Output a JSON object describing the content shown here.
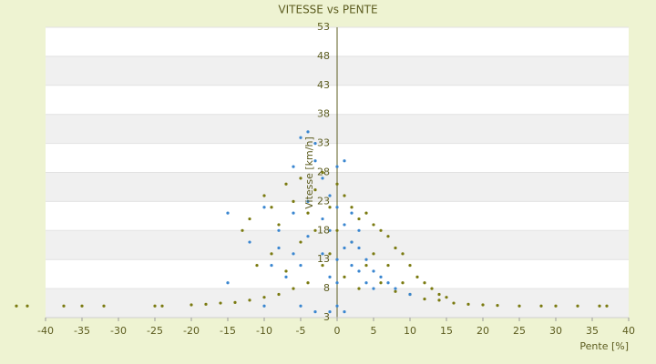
{
  "chart_data": {
    "type": "scatter",
    "title": "VITESSE vs PENTE",
    "x_label": "Pente [%]",
    "y_label": "Vitesse [km/h]",
    "xlim": [
      -40,
      40
    ],
    "xticks": [
      -40,
      -35,
      -30,
      -25,
      -20,
      -15,
      -10,
      -5,
      0,
      5,
      10,
      15,
      20,
      25,
      30,
      35,
      40
    ],
    "ylim": [
      3,
      53
    ],
    "yticks": [
      3,
      8,
      13,
      18,
      23,
      28,
      33,
      38,
      43,
      48,
      53
    ],
    "grid": true,
    "series": [
      {
        "color": "#7a7a10",
        "x": [
          -44,
          -42.5,
          -37.5,
          -35,
          -32,
          -25,
          -24,
          -20,
          -18,
          -16,
          -14,
          -12,
          -10,
          -8,
          -6,
          -4,
          -2,
          0,
          2,
          4,
          6,
          8,
          10,
          12,
          14,
          16,
          18,
          20,
          22,
          25,
          28,
          30,
          33,
          36,
          37,
          -13,
          -12,
          -10,
          -9,
          -8,
          -7,
          -6,
          -5,
          -4,
          -3,
          -2,
          -1,
          0,
          1,
          2,
          3,
          4,
          5,
          6,
          7,
          8,
          9,
          10,
          11,
          12,
          13,
          14,
          -11,
          -9,
          -7,
          -5,
          -3,
          -1,
          1,
          3,
          5,
          7,
          9,
          15
        ],
        "values": [
          5,
          5,
          5,
          5,
          5,
          5,
          5,
          5.2,
          5.3,
          5.5,
          5.6,
          6,
          6.5,
          7,
          8,
          9,
          12,
          18,
          16,
          12,
          9,
          7.5,
          7,
          6.2,
          6,
          5.5,
          5.3,
          5.2,
          5.1,
          5,
          5,
          5,
          5,
          5,
          5,
          18,
          20,
          24,
          22,
          19,
          26,
          23,
          27,
          21,
          25,
          28,
          22,
          26,
          24,
          22,
          20,
          21,
          19,
          18,
          17,
          15,
          14,
          12,
          10,
          9,
          8,
          7,
          12,
          14,
          11,
          16,
          18,
          14,
          10,
          8,
          14,
          12,
          9,
          6.5
        ]
      },
      {
        "color": "#3a86d0",
        "x": [
          -15,
          -15,
          -10,
          -8,
          -6,
          -5,
          -4,
          -3,
          -3,
          -2,
          -1,
          0,
          1,
          0,
          1,
          2,
          3,
          4,
          5,
          6,
          7,
          8,
          -1,
          -2,
          -4,
          -5,
          -6,
          -7,
          -8,
          -3,
          -1,
          0,
          1,
          -10,
          -5,
          2,
          3,
          4,
          -2,
          -1,
          0,
          0,
          1,
          -4,
          -6,
          2,
          3,
          5,
          10,
          -12,
          -9
        ],
        "values": [
          9,
          21,
          22,
          18,
          29,
          34,
          35,
          33,
          30,
          27,
          24,
          29,
          30,
          22,
          19,
          16,
          15,
          13,
          11,
          10,
          9,
          8,
          18,
          20,
          17,
          12,
          14,
          10,
          15,
          4,
          4,
          5,
          4,
          5,
          5,
          12,
          18,
          9,
          14,
          10,
          13,
          9,
          15,
          23,
          21,
          21,
          11,
          8,
          7,
          16,
          12
        ]
      }
    ]
  }
}
